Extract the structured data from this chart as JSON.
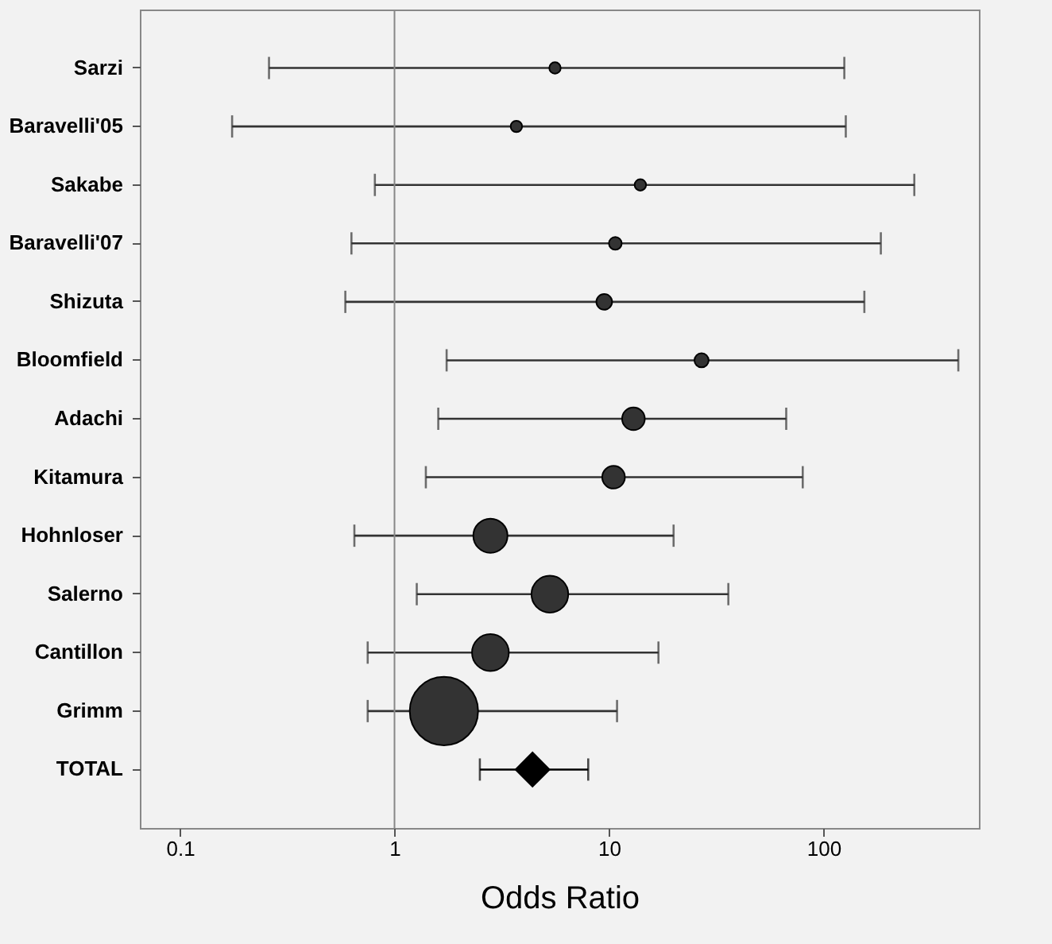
{
  "chart_data": {
    "type": "bubble",
    "orientation": "horizontal",
    "xlabel": "Odds Ratio",
    "log": "x",
    "grid": false,
    "legend": false,
    "categories": [
      "Sarzi",
      "Baravelli'05",
      "Sakabe",
      "Baravelli'07",
      "Shizuta",
      "Bloomfield",
      "Adachi",
      "Kitamura",
      "Hohnloser",
      "Salerno",
      "Cantillon",
      "Grimm",
      "TOTAL"
    ],
    "xlim": [
      0.065,
      530
    ],
    "xticks": [
      0.1,
      1,
      10,
      100
    ],
    "ref_lines": [
      {
        "axis": "x",
        "value": 1,
        "color": "#888888"
      }
    ],
    "series": [
      {
        "type": "bubble",
        "color": "#333333",
        "values": [
          5.6,
          3.7,
          14,
          10.7,
          9.5,
          27,
          13,
          10.5,
          2.8,
          5.3,
          2.8,
          1.7,
          null
        ],
        "sizes": [
          0.028,
          0.028,
          0.028,
          0.035,
          0.053,
          0.043,
          0.11,
          0.11,
          0.25,
          0.29,
          0.29,
          1,
          null
        ],
        "errors": [
          [
            0.26,
            125
          ],
          [
            0.175,
            127
          ],
          [
            0.81,
            265
          ],
          [
            0.63,
            185
          ],
          [
            0.59,
            155
          ],
          [
            1.75,
            425
          ],
          [
            1.6,
            67
          ],
          [
            1.4,
            80
          ],
          [
            0.65,
            20
          ],
          [
            1.27,
            36
          ],
          [
            0.75,
            17
          ],
          [
            0.75,
            10.9
          ],
          null
        ]
      },
      {
        "type": "scatter",
        "marker": "diamond",
        "color": "#000000",
        "values": [
          null,
          null,
          null,
          null,
          null,
          null,
          null,
          null,
          null,
          null,
          null,
          null,
          4.4
        ],
        "errors": [
          null,
          null,
          null,
          null,
          null,
          null,
          null,
          null,
          null,
          null,
          null,
          null,
          [
            2.5,
            8.0
          ]
        ]
      }
    ]
  }
}
